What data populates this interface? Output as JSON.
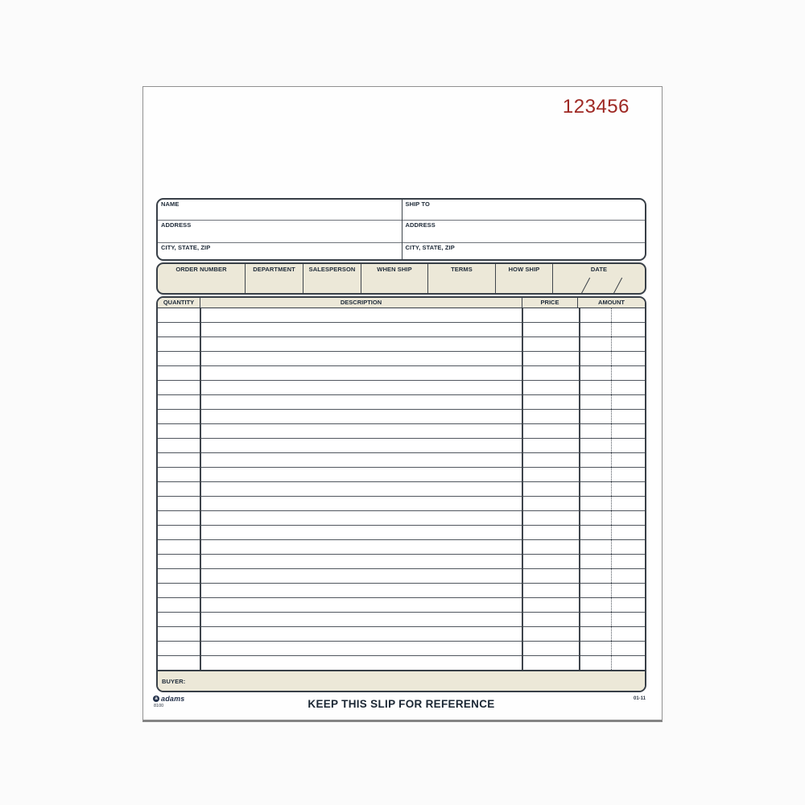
{
  "page": {
    "serial_number": "123456"
  },
  "colors": {
    "serial_red": "#9e2823",
    "form_beige": "#ece8d8",
    "line_dark": "#383f47",
    "label_navy": "#202c3a",
    "paper_white": "#fefefe"
  },
  "icons": {
    "brand_mark": "a",
    "date_slash": "/"
  },
  "customer_box": {
    "bill": {
      "name_label": "NAME",
      "address_label": "ADDRESS",
      "city_label": "CITY, STATE, ZIP"
    },
    "ship": {
      "name_label": "SHIP TO",
      "address_label": "ADDRESS",
      "city_label": "CITY, STATE, ZIP"
    }
  },
  "order_band": {
    "fields": [
      "ORDER NUMBER",
      "DEPARTMENT",
      "SALESPERSON",
      "WHEN SHIP",
      "TERMS",
      "HOW SHIP",
      "DATE"
    ]
  },
  "items_table": {
    "columns": [
      "QUANTITY",
      "DESCRIPTION",
      "PRICE",
      "AMOUNT"
    ],
    "row_count": 25,
    "buyer_label": "BUYER:"
  },
  "footer": {
    "brand": "adams",
    "form_number": "8100",
    "keep_slip_text": "KEEP THIS SLIP FOR REFERENCE",
    "revision_code": "01-11"
  }
}
